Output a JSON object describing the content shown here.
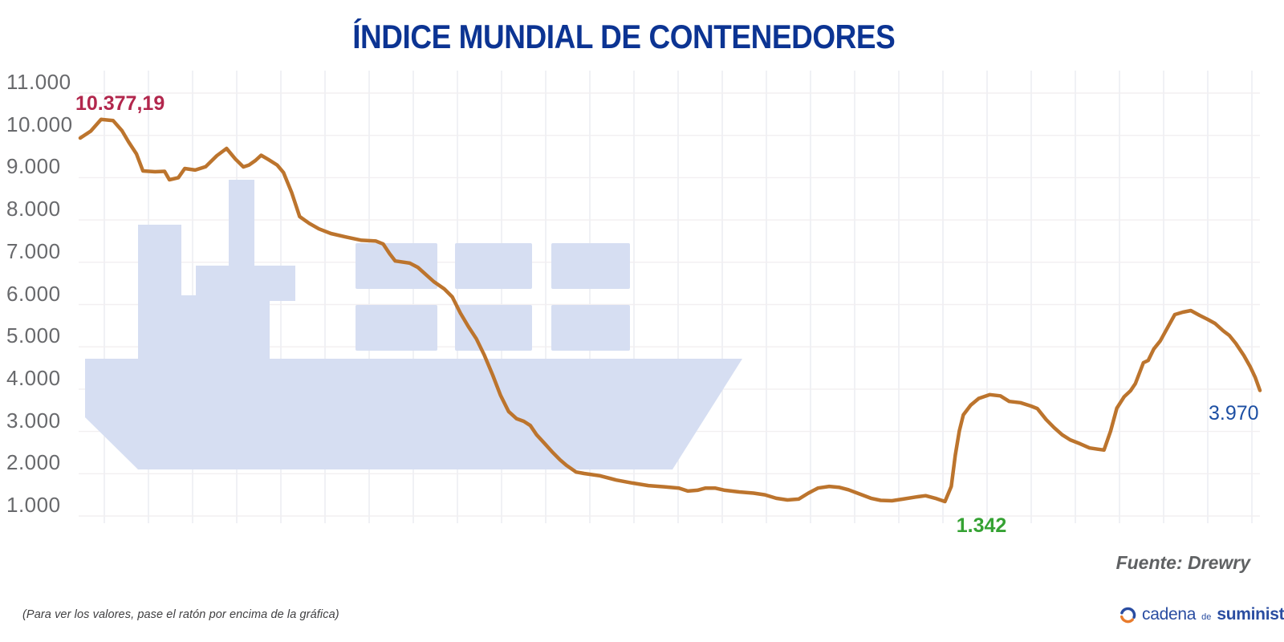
{
  "header": {
    "title": "ÍNDICE MUNDIAL DE CONTENEDORES",
    "title_color": "#0c3493"
  },
  "chart_data": {
    "type": "line",
    "title": "ÍNDICE MUNDIAL DE CONTENEDORES",
    "x_labels_visible": false,
    "grid": true,
    "legend": false,
    "ylim": [
      1000,
      11000
    ],
    "y_ticks": [
      {
        "value": 11000,
        "label": "11.000"
      },
      {
        "value": 10000,
        "label": "10.000"
      },
      {
        "value": 9000,
        "label": "9.000"
      },
      {
        "value": 8000,
        "label": "8.000"
      },
      {
        "value": 7000,
        "label": "7.000"
      },
      {
        "value": 6000,
        "label": "6.000"
      },
      {
        "value": 5000,
        "label": "5.000"
      },
      {
        "value": 4000,
        "label": "4.000"
      },
      {
        "value": 3000,
        "label": "3.000"
      },
      {
        "value": 2000,
        "label": "2.000"
      },
      {
        "value": 1000,
        "label": "1.000"
      }
    ],
    "series": [
      {
        "name": "Índice mundial de contenedores",
        "color": "#bc742d",
        "points": [
          [
            0,
            9937
          ],
          [
            0.89,
            10100
          ],
          [
            1.77,
            10377.19
          ],
          [
            2.79,
            10350
          ],
          [
            3.54,
            10110
          ],
          [
            4.09,
            9850
          ],
          [
            4.77,
            9560
          ],
          [
            5.31,
            9160
          ],
          [
            6.34,
            9140
          ],
          [
            7.15,
            9150
          ],
          [
            7.56,
            8950
          ],
          [
            8.31,
            9000
          ],
          [
            8.86,
            9216
          ],
          [
            9.74,
            9180
          ],
          [
            10.63,
            9260
          ],
          [
            11.58,
            9520
          ],
          [
            12.4,
            9691
          ],
          [
            13.15,
            9440
          ],
          [
            13.83,
            9254
          ],
          [
            14.31,
            9300
          ],
          [
            14.85,
            9406
          ],
          [
            15.33,
            9530
          ],
          [
            15.94,
            9430
          ],
          [
            16.69,
            9300
          ],
          [
            17.23,
            9120
          ],
          [
            17.92,
            8650
          ],
          [
            18.6,
            8080
          ],
          [
            19.41,
            7920
          ],
          [
            20.23,
            7790
          ],
          [
            21.25,
            7680
          ],
          [
            22.48,
            7600
          ],
          [
            23.84,
            7520
          ],
          [
            25.07,
            7500
          ],
          [
            25.68,
            7430
          ],
          [
            26.23,
            7200
          ],
          [
            26.7,
            7030
          ],
          [
            27.93,
            6980
          ],
          [
            28.61,
            6880
          ],
          [
            29.29,
            6710
          ],
          [
            29.97,
            6540
          ],
          [
            30.86,
            6370
          ],
          [
            31.54,
            6180
          ],
          [
            32.22,
            5800
          ],
          [
            32.9,
            5480
          ],
          [
            33.58,
            5190
          ],
          [
            34.26,
            4800
          ],
          [
            34.95,
            4340
          ],
          [
            35.63,
            3850
          ],
          [
            36.31,
            3470
          ],
          [
            36.99,
            3300
          ],
          [
            37.6,
            3240
          ],
          [
            38.15,
            3140
          ],
          [
            38.69,
            2920
          ],
          [
            39.31,
            2730
          ],
          [
            39.99,
            2520
          ],
          [
            40.67,
            2330
          ],
          [
            41.21,
            2200
          ],
          [
            42.03,
            2040
          ],
          [
            42.71,
            2005
          ],
          [
            44.07,
            1950
          ],
          [
            45.44,
            1850
          ],
          [
            46.8,
            1780
          ],
          [
            48.16,
            1720
          ],
          [
            49.52,
            1690
          ],
          [
            50.75,
            1660
          ],
          [
            51.5,
            1590
          ],
          [
            52.32,
            1610
          ],
          [
            53,
            1660
          ],
          [
            53.81,
            1660
          ],
          [
            54.63,
            1610
          ],
          [
            55.86,
            1570
          ],
          [
            57.08,
            1540
          ],
          [
            58.04,
            1500
          ],
          [
            58.99,
            1420
          ],
          [
            59.95,
            1380
          ],
          [
            60.9,
            1400
          ],
          [
            61.72,
            1540
          ],
          [
            62.53,
            1660
          ],
          [
            63.49,
            1700
          ],
          [
            64.31,
            1680
          ],
          [
            65.12,
            1620
          ],
          [
            66.08,
            1520
          ],
          [
            67.03,
            1420
          ],
          [
            67.85,
            1370
          ],
          [
            68.8,
            1360
          ],
          [
            69.75,
            1400
          ],
          [
            70.84,
            1450
          ],
          [
            71.66,
            1480
          ],
          [
            72.48,
            1420
          ],
          [
            73.3,
            1342
          ],
          [
            73.84,
            1700
          ],
          [
            74.18,
            2440
          ],
          [
            74.52,
            3010
          ],
          [
            74.86,
            3390
          ],
          [
            75.48,
            3620
          ],
          [
            76.16,
            3780
          ],
          [
            77.11,
            3870
          ],
          [
            78,
            3840
          ],
          [
            78.75,
            3710
          ],
          [
            79.7,
            3680
          ],
          [
            80.59,
            3600
          ],
          [
            81.13,
            3540
          ],
          [
            81.88,
            3280
          ],
          [
            82.56,
            3090
          ],
          [
            83.24,
            2920
          ],
          [
            83.92,
            2800
          ],
          [
            84.74,
            2710
          ],
          [
            85.56,
            2610
          ],
          [
            86.24,
            2580
          ],
          [
            86.78,
            2560
          ],
          [
            87.33,
            3000
          ],
          [
            87.87,
            3550
          ],
          [
            88.49,
            3820
          ],
          [
            89.03,
            3960
          ],
          [
            89.44,
            4130
          ],
          [
            90.12,
            4625
          ],
          [
            90.53,
            4680
          ],
          [
            91.01,
            4950
          ],
          [
            91.55,
            5140
          ],
          [
            92.1,
            5420
          ],
          [
            92.78,
            5763
          ],
          [
            93.46,
            5820
          ],
          [
            94.14,
            5857.65
          ],
          [
            94.89,
            5744
          ],
          [
            95.57,
            5649
          ],
          [
            96.19,
            5554
          ],
          [
            96.87,
            5383
          ],
          [
            97.41,
            5269
          ],
          [
            97.96,
            5079
          ],
          [
            98.64,
            4795
          ],
          [
            99.18,
            4530
          ],
          [
            99.59,
            4284
          ],
          [
            100,
            3970
          ]
        ]
      }
    ],
    "annotations": [
      {
        "id": "max",
        "text": "10.377,19",
        "value": 10377.19,
        "color": "#b2274d"
      },
      {
        "id": "min",
        "text": "1.342",
        "value": 1342,
        "color": "#35a233"
      },
      {
        "id": "last",
        "text": "3.970",
        "value": 3970,
        "color": "#1d4fa3"
      }
    ],
    "source": "Fuente: Drewry"
  },
  "footer": {
    "note": "(Para ver los valores, pase el ratón por encima de la gráfica)",
    "logo": {
      "part1": "cadena",
      "part2": "de",
      "part3": "suministro",
      "blue": "#2a4da1",
      "orange": "#e87b2c"
    }
  },
  "style_colors": {
    "watermark": "#d6def2",
    "grid_vertical": "#e9ebf1",
    "grid_horizontal": "#f2eff1",
    "y_label": "#68696c"
  }
}
